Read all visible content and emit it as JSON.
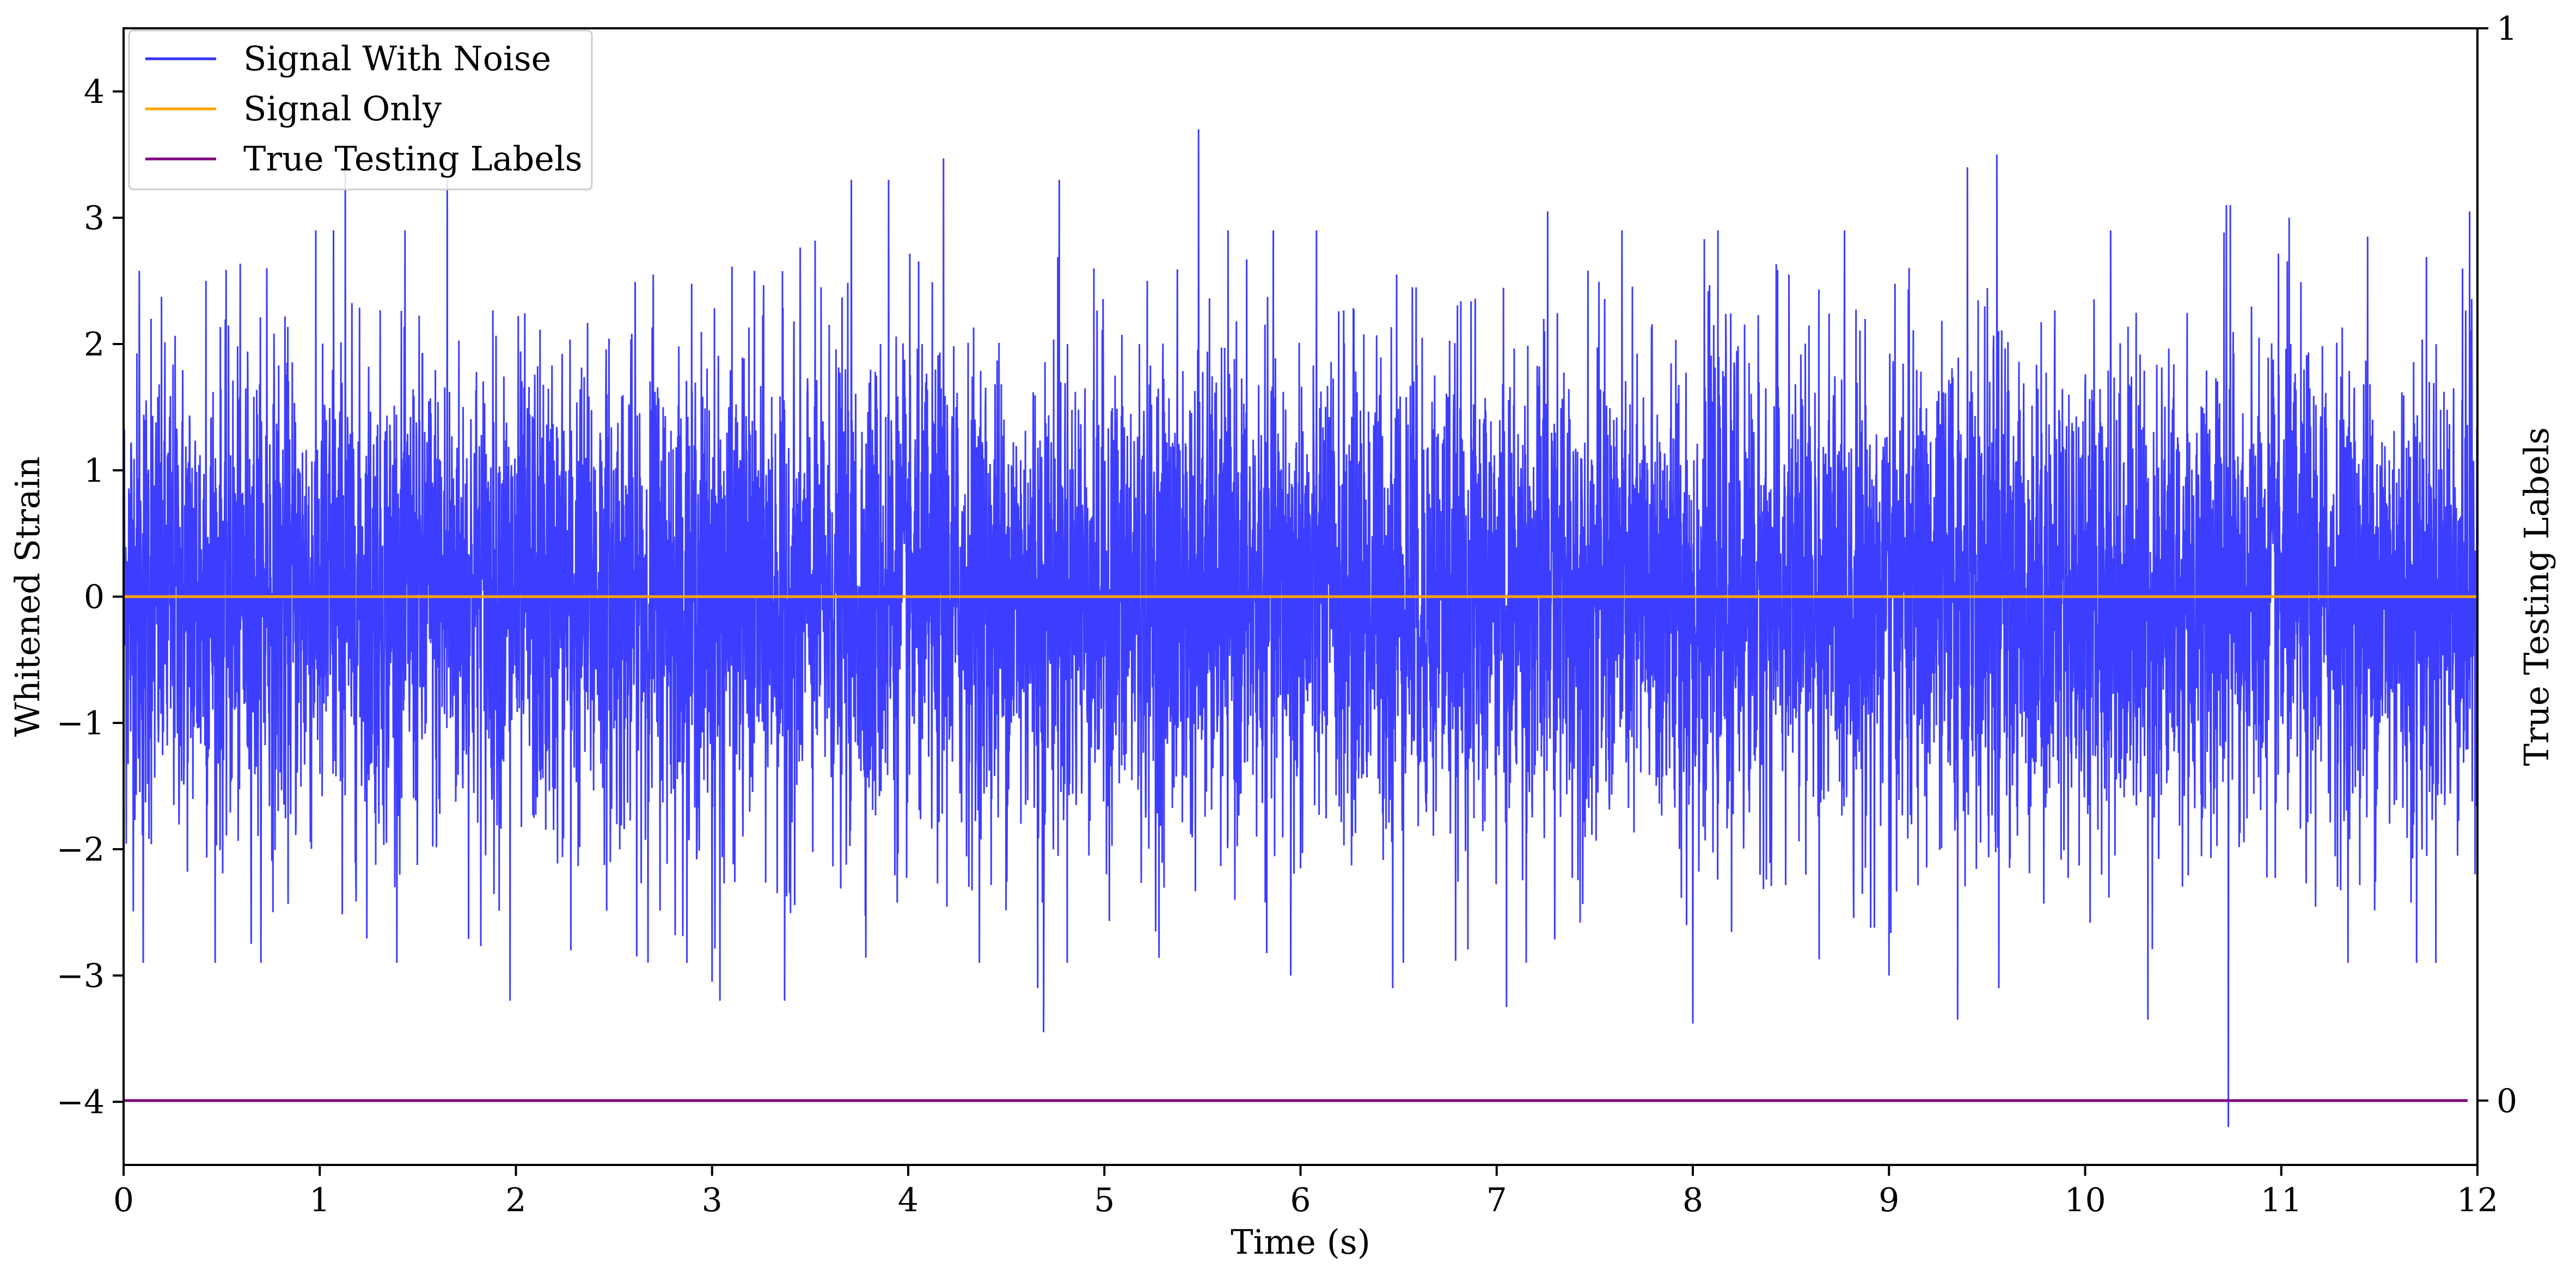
{
  "chart_data": {
    "type": "line",
    "xlabel": "Time (s)",
    "ylabel": "Whitened Strain",
    "y2label": "True Testing Labels",
    "xlim": [
      0,
      12
    ],
    "ylim": [
      -4.5,
      4.5
    ],
    "y2lim": [
      -0.06,
      1
    ],
    "x_ticks": [
      0,
      1,
      2,
      3,
      4,
      5,
      6,
      7,
      8,
      9,
      10,
      11,
      12
    ],
    "x_tick_labels": [
      "0",
      "1",
      "2",
      "3",
      "4",
      "5",
      "6",
      "7",
      "8",
      "9",
      "10",
      "11",
      "12"
    ],
    "y_ticks": [
      -4,
      -3,
      -2,
      -1,
      0,
      1,
      2,
      3,
      4
    ],
    "y_tick_labels": [
      "−4",
      "−3",
      "−2",
      "−1",
      "0",
      "1",
      "2",
      "3",
      "4"
    ],
    "y2_ticks": [
      0,
      1
    ],
    "y2_tick_labels": [
      "0",
      "1"
    ],
    "legend_position": "top-left",
    "grid": false,
    "series": [
      {
        "name": "Signal With Noise",
        "color": "#3333ff",
        "axis": "left",
        "description_values": "white noise around 0, std about 1",
        "x": [
          0.0,
          0.08,
          0.1,
          0.14,
          0.42,
          0.73,
          1.07,
          1.13,
          1.65,
          1.97,
          2.28,
          2.7,
          3.0,
          3.04,
          3.37,
          3.71,
          3.9,
          4.18,
          4.66,
          4.69,
          4.77,
          5.48,
          5.95,
          6.47,
          6.49,
          6.57,
          7.05,
          7.26,
          8.0,
          8.49,
          9.0,
          9.35,
          9.4,
          9.55,
          9.56,
          10.13,
          10.32,
          10.72,
          10.73,
          10.74,
          11.04,
          11.44,
          11.69,
          11.96,
          12.0
        ],
        "y": [
          0.3,
          2.58,
          -2.9,
          2.2,
          2.5,
          2.6,
          2.9,
          3.4,
          3.3,
          -3.2,
          -2.8,
          2.55,
          -3.05,
          -3.2,
          -3.2,
          3.3,
          3.3,
          3.47,
          -3.1,
          -3.45,
          3.3,
          3.7,
          -3.0,
          -3.1,
          2.55,
          2.45,
          -3.25,
          3.05,
          -3.38,
          2.55,
          -3.0,
          -3.35,
          3.4,
          3.5,
          -3.1,
          2.9,
          -3.35,
          3.1,
          -4.2,
          3.1,
          3.0,
          2.85,
          -2.9,
          3.05,
          2.6
        ]
      },
      {
        "name": "Signal Only",
        "color": "#ffa500",
        "axis": "left",
        "x": [
          0,
          12
        ],
        "y": [
          0,
          0
        ]
      },
      {
        "name": "True Testing Labels",
        "color": "#800080",
        "axis": "right",
        "x": [
          0,
          11.95
        ],
        "y": [
          0,
          0
        ]
      }
    ]
  }
}
